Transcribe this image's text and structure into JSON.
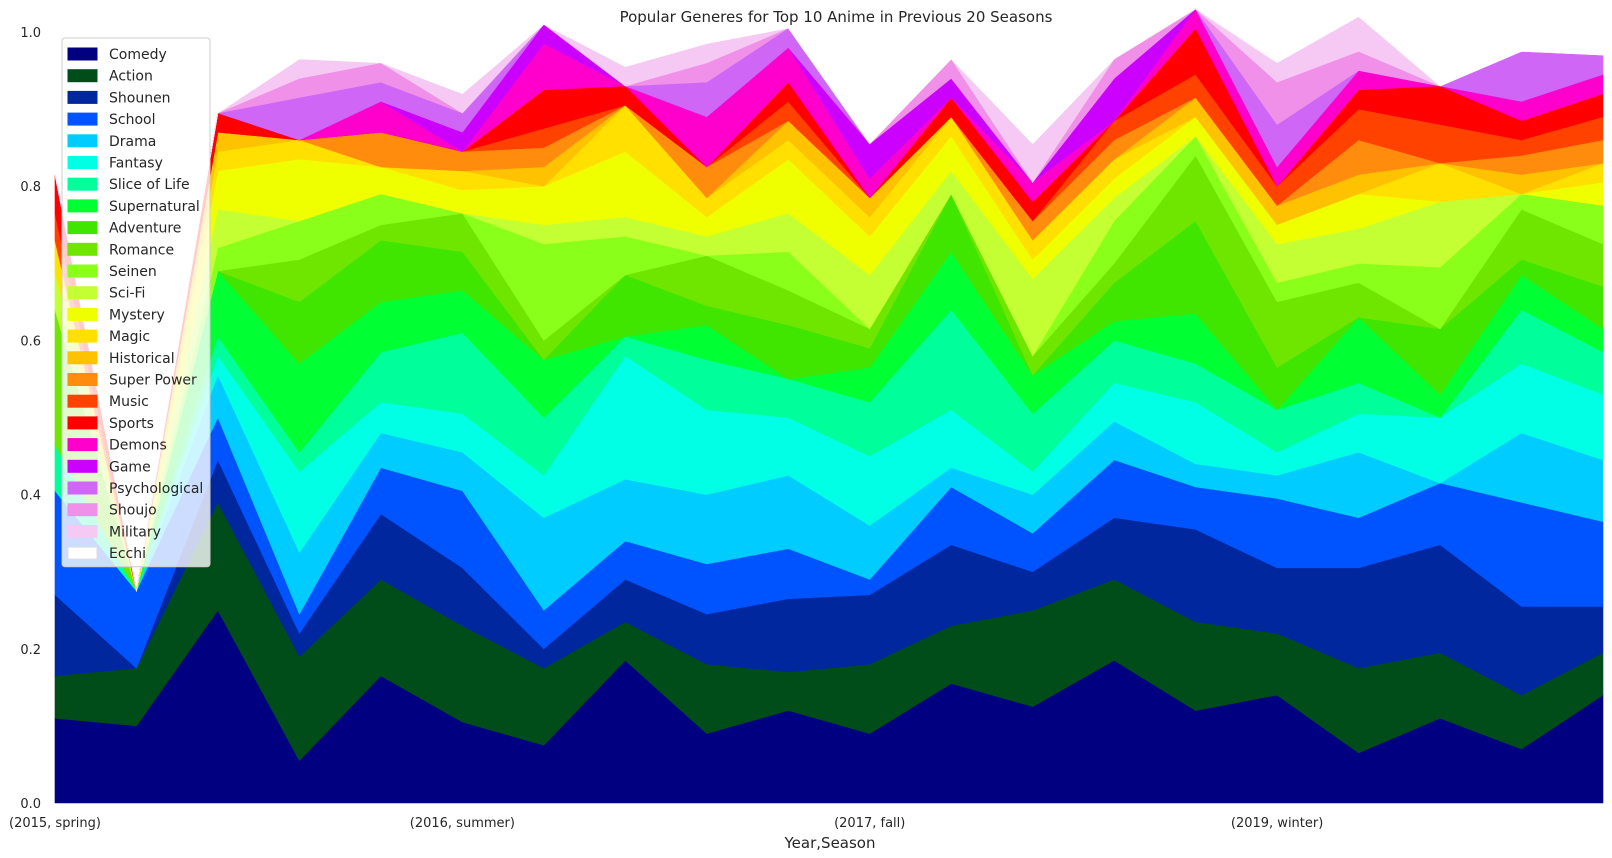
{
  "chart_data": {
    "type": "area",
    "stacked": true,
    "title": "Popular Generes for Top 10 Anime in Previous 20 Seasons",
    "xlabel": "Year,Season",
    "ylabel": "",
    "ylim": [
      0,
      1.0
    ],
    "y_ticks": [
      "0.0",
      "0.2",
      "0.4",
      "0.6",
      "0.8",
      "1.0"
    ],
    "x_tick_labels": [
      {
        "index": 0,
        "label": "(2015, spring)"
      },
      {
        "index": 5,
        "label": "(2016, summer)"
      },
      {
        "index": 10,
        "label": "(2017, fall)"
      },
      {
        "index": 15,
        "label": "(2019, winter)"
      }
    ],
    "grid": false,
    "legend_position": "upper-left",
    "n_points": 20,
    "series": [
      {
        "name": "Comedy",
        "color": "#000080",
        "values": [
          0.11,
          0.1,
          0.25,
          0.055,
          0.165,
          0.105,
          0.075,
          0.185,
          0.09,
          0.12,
          0.09,
          0.155,
          0.125,
          0.185,
          0.12,
          0.14,
          0.065,
          0.11,
          0.07,
          0.14
        ]
      },
      {
        "name": "Action",
        "color": "#004d1a",
        "values": [
          0.055,
          0.075,
          0.14,
          0.135,
          0.125,
          0.125,
          0.1,
          0.05,
          0.09,
          0.05,
          0.09,
          0.075,
          0.125,
          0.105,
          0.115,
          0.08,
          0.11,
          0.085,
          0.07,
          0.055
        ]
      },
      {
        "name": "Shounen",
        "color": "#00279e",
        "values": [
          0.105,
          0.0,
          0.055,
          0.03,
          0.085,
          0.075,
          0.025,
          0.055,
          0.065,
          0.095,
          0.09,
          0.105,
          0.05,
          0.08,
          0.12,
          0.085,
          0.13,
          0.14,
          0.115,
          0.06
        ]
      },
      {
        "name": "School",
        "color": "#0054ff",
        "values": [
          0.135,
          0.1,
          0.055,
          0.025,
          0.06,
          0.1,
          0.05,
          0.05,
          0.065,
          0.065,
          0.02,
          0.075,
          0.05,
          0.075,
          0.055,
          0.09,
          0.065,
          0.08,
          0.135,
          0.11
        ]
      },
      {
        "name": "Drama",
        "color": "#00ccff",
        "values": [
          0.0,
          0.0,
          0.055,
          0.08,
          0.045,
          0.05,
          0.12,
          0.08,
          0.09,
          0.095,
          0.07,
          0.025,
          0.05,
          0.05,
          0.03,
          0.03,
          0.085,
          0.0,
          0.09,
          0.08
        ]
      },
      {
        "name": "Fantasy",
        "color": "#00ffe5",
        "values": [
          0.0,
          0.0,
          0.025,
          0.105,
          0.04,
          0.05,
          0.055,
          0.16,
          0.11,
          0.075,
          0.09,
          0.075,
          0.03,
          0.05,
          0.08,
          0.03,
          0.05,
          0.085,
          0.09,
          0.085
        ]
      },
      {
        "name": "Slice of Life",
        "color": "#00ff9a",
        "values": [
          0.06,
          0.0,
          0.025,
          0.025,
          0.065,
          0.105,
          0.075,
          0.025,
          0.065,
          0.05,
          0.07,
          0.13,
          0.075,
          0.055,
          0.05,
          0.055,
          0.04,
          0.0,
          0.07,
          0.055
        ]
      },
      {
        "name": "Supernatural",
        "color": "#00ff33",
        "values": [
          0.0,
          0.0,
          0.085,
          0.115,
          0.065,
          0.055,
          0.075,
          0.0,
          0.045,
          0.0,
          0.045,
          0.075,
          0.05,
          0.025,
          0.065,
          0.0,
          0.085,
          0.03,
          0.045,
          0.03
        ]
      },
      {
        "name": "Adventure",
        "color": "#40e600",
        "values": [
          0.0,
          0.0,
          0.0,
          0.08,
          0.08,
          0.05,
          0.0,
          0.08,
          0.025,
          0.07,
          0.025,
          0.075,
          0.0,
          0.05,
          0.12,
          0.055,
          0.0,
          0.085,
          0.02,
          0.055
        ]
      },
      {
        "name": "Romance",
        "color": "#6ee600",
        "values": [
          0.175,
          0.0,
          0.0,
          0.055,
          0.02,
          0.05,
          0.025,
          0.0,
          0.065,
          0.045,
          0.025,
          0.0,
          0.025,
          0.025,
          0.085,
          0.085,
          0.045,
          0.0,
          0.065,
          0.055
        ]
      },
      {
        "name": "Seinen",
        "color": "#8aff1a",
        "values": [
          0.0,
          0.0,
          0.03,
          0.05,
          0.04,
          0.0,
          0.125,
          0.05,
          0.0,
          0.05,
          0.0,
          0.0,
          0.0,
          0.055,
          0.025,
          0.025,
          0.025,
          0.08,
          0.02,
          0.05
        ]
      },
      {
        "name": "Sci-Fi",
        "color": "#c4ff33",
        "values": [
          0.05,
          0.0,
          0.05,
          0.0,
          0.0,
          0.0,
          0.025,
          0.025,
          0.025,
          0.05,
          0.07,
          0.03,
          0.1,
          0.03,
          0.0,
          0.05,
          0.045,
          0.085,
          0.0,
          0.0
        ]
      },
      {
        "name": "Mystery",
        "color": "#f0ff00",
        "values": [
          0.0,
          0.0,
          0.05,
          0.08,
          0.035,
          0.03,
          0.05,
          0.085,
          0.025,
          0.07,
          0.05,
          0.045,
          0.025,
          0.025,
          0.025,
          0.025,
          0.045,
          0.0,
          0.0,
          0.03
        ]
      },
      {
        "name": "Magic",
        "color": "#ffe000",
        "values": [
          0.04,
          0.0,
          0.025,
          0.025,
          0.0,
          0.025,
          0.0,
          0.06,
          0.025,
          0.025,
          0.025,
          0.025,
          0.025,
          0.025,
          0.0,
          0.0,
          0.0,
          0.05,
          0.0,
          0.025
        ]
      },
      {
        "name": "Historical",
        "color": "#ffc200",
        "values": [
          0.0,
          0.0,
          0.025,
          0.0,
          0.0,
          0.0,
          0.025,
          0.0,
          0.0,
          0.025,
          0.025,
          0.0,
          0.0,
          0.0,
          0.025,
          0.025,
          0.025,
          0.0,
          0.025,
          0.0
        ]
      },
      {
        "name": "Super Power",
        "color": "#ff8c0d",
        "values": [
          0.0,
          0.0,
          0.0,
          0.0,
          0.045,
          0.025,
          0.025,
          0.0,
          0.04,
          0.0,
          0.0,
          0.0,
          0.025,
          0.025,
          0.0,
          0.0,
          0.045,
          0.0,
          0.025,
          0.03
        ]
      },
      {
        "name": "Music",
        "color": "#ff4200",
        "values": [
          0.035,
          0.0,
          0.0,
          0.0,
          0.0,
          0.0,
          0.025,
          0.0,
          0.0,
          0.025,
          0.0,
          0.0,
          0.0,
          0.025,
          0.03,
          0.025,
          0.04,
          0.05,
          0.02,
          0.03
        ]
      },
      {
        "name": "Sports",
        "color": "#ff0000",
        "values": [
          0.05,
          0.0,
          0.025,
          0.0,
          0.0,
          0.0,
          0.05,
          0.025,
          0.0,
          0.025,
          0.0,
          0.025,
          0.025,
          0.0,
          0.06,
          0.0,
          0.025,
          0.05,
          0.025,
          0.03
        ]
      },
      {
        "name": "Demons",
        "color": "#ff00cc",
        "values": [
          0.0,
          0.0,
          0.0,
          0.0,
          0.04,
          0.0,
          0.06,
          0.0,
          0.065,
          0.045,
          0.025,
          0.0,
          0.025,
          0.0,
          0.025,
          0.025,
          0.025,
          0.0,
          0.025,
          0.025
        ]
      },
      {
        "name": "Game",
        "color": "#cc00ff",
        "values": [
          0.0,
          0.0,
          0.0,
          0.0,
          0.0,
          0.025,
          0.025,
          0.0,
          0.0,
          0.0,
          0.045,
          0.025,
          0.0,
          0.055,
          0.0,
          0.0,
          0.0,
          0.0,
          0.0,
          0.0
        ]
      },
      {
        "name": "Psychological",
        "color": "#d066f5",
        "values": [
          0.0,
          0.0,
          0.0,
          0.055,
          0.025,
          0.025,
          0.0,
          0.0,
          0.045,
          0.025,
          0.0,
          0.0,
          0.0,
          0.0,
          0.0,
          0.055,
          0.0,
          0.0,
          0.065,
          0.025
        ]
      },
      {
        "name": "Shoujo",
        "color": "#f090e8",
        "values": [
          0.0,
          0.0,
          0.0,
          0.025,
          0.025,
          0.0,
          0.0,
          0.0,
          0.025,
          0.0,
          0.0,
          0.025,
          0.0,
          0.025,
          0.0,
          0.055,
          0.025,
          0.0,
          0.0,
          0.0
        ]
      },
      {
        "name": "Military",
        "color": "#f6c8f4",
        "values": [
          0.0,
          0.0,
          0.0,
          0.025,
          0.0,
          0.025,
          0.0,
          0.025,
          0.025,
          0.0,
          0.0,
          0.0,
          0.05,
          0.0,
          0.0,
          0.025,
          0.045,
          0.0,
          0.0,
          0.0
        ]
      },
      {
        "name": "Ecchi",
        "color": "#ffffff",
        "values": [
          0.0,
          0.0,
          0.0,
          0.025,
          0.0,
          0.025,
          0.0,
          0.025,
          0.025,
          0.0,
          0.025,
          0.0,
          0.025,
          0.0,
          0.0,
          0.0,
          0.0,
          0.0,
          0.025,
          0.025
        ]
      }
    ]
  }
}
